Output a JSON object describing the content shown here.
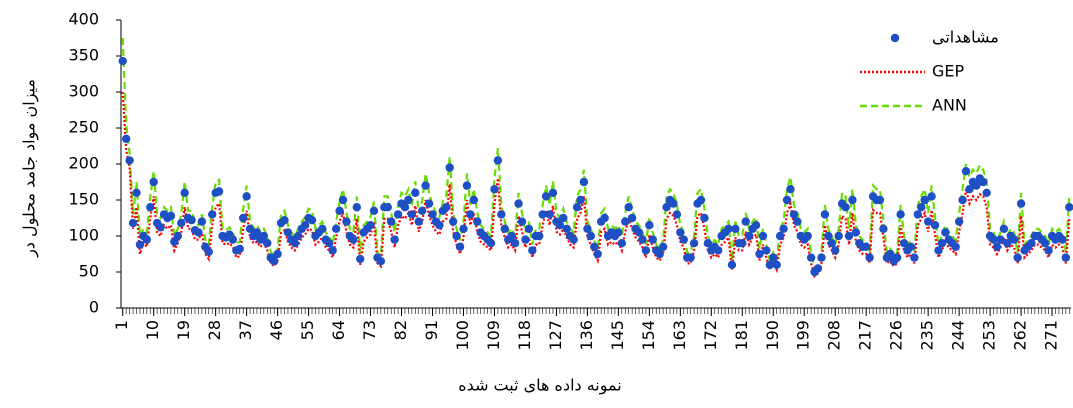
{
  "chart_data": {
    "type": "line",
    "y_label": "میزان مواد جامد محلول در",
    "x_label": "نمونه داده های ثبت شده",
    "legend": "upper right",
    "xlim": [
      0.5,
      276.5
    ],
    "xticks": [
      1,
      10,
      19,
      28,
      37,
      46,
      55,
      64,
      73,
      82,
      91,
      100,
      109,
      118,
      127,
      136,
      145,
      154,
      163,
      172,
      181,
      190,
      199,
      208,
      217,
      226,
      235,
      244,
      253,
      262,
      271
    ],
    "ylim": [
      0,
      400
    ],
    "yticks": [
      0,
      50,
      100,
      150,
      200,
      250,
      300,
      350,
      400
    ],
    "x": [
      1,
      2,
      3,
      4,
      5,
      6,
      7,
      8,
      9,
      10,
      11,
      12,
      13,
      14,
      15,
      16,
      17,
      18,
      19,
      20,
      21,
      22,
      23,
      24,
      25,
      26,
      27,
      28,
      29,
      30,
      31,
      32,
      33,
      34,
      35,
      36,
      37,
      38,
      39,
      40,
      41,
      42,
      43,
      44,
      45,
      46,
      47,
      48,
      49,
      50,
      51,
      52,
      53,
      54,
      55,
      56,
      57,
      58,
      59,
      60,
      61,
      62,
      63,
      64,
      65,
      66,
      67,
      68,
      69,
      70,
      71,
      72,
      73,
      74,
      75,
      76,
      77,
      78,
      79,
      80,
      81,
      82,
      83,
      84,
      85,
      86,
      87,
      88,
      89,
      90,
      91,
      92,
      93,
      94,
      95,
      96,
      97,
      98,
      99,
      100,
      101,
      102,
      103,
      104,
      105,
      106,
      107,
      108,
      109,
      110,
      111,
      112,
      113,
      114,
      115,
      116,
      117,
      118,
      119,
      120,
      121,
      122,
      123,
      124,
      125,
      126,
      127,
      128,
      129,
      130,
      131,
      132,
      133,
      134,
      135,
      136,
      137,
      138,
      139,
      140,
      141,
      142,
      143,
      144,
      145,
      146,
      147,
      148,
      149,
      150,
      151,
      152,
      153,
      154,
      155,
      156,
      157,
      158,
      159,
      160,
      161,
      162,
      163,
      164,
      165,
      166,
      167,
      168,
      169,
      170,
      171,
      172,
      173,
      174,
      175,
      176,
      177,
      178,
      179,
      180,
      181,
      182,
      183,
      184,
      185,
      186,
      187,
      188,
      189,
      190,
      191,
      192,
      193,
      194,
      195,
      196,
      197,
      198,
      199,
      200,
      201,
      202,
      203,
      204,
      205,
      206,
      207,
      208,
      209,
      210,
      211,
      212,
      213,
      214,
      215,
      216,
      217,
      218,
      219,
      220,
      221,
      222,
      223,
      224,
      225,
      226,
      227,
      228,
      229,
      230,
      231,
      232,
      233,
      234,
      235,
      236,
      237,
      238,
      239,
      240,
      241,
      242,
      243,
      244,
      245,
      246,
      247,
      248,
      249,
      250,
      251,
      252,
      253,
      254,
      255,
      256,
      257,
      258,
      259,
      260,
      261,
      262,
      263,
      264,
      265,
      266,
      267,
      268,
      269,
      270,
      271,
      272,
      273,
      274,
      275,
      276
    ],
    "series": [
      {
        "name": "ANN",
        "color": "#66dd00",
        "style": "dashed",
        "values": [
          375,
          255,
          215,
          130,
          175,
          100,
          110,
          105,
          155,
          190,
          130,
          125,
          140,
          135,
          140,
          100,
          110,
          130,
          175,
          135,
          135,
          120,
          115,
          130,
          95,
          88,
          140,
          175,
          178,
          110,
          108,
          112,
          105,
          90,
          92,
          138,
          170,
          120,
          110,
          115,
          105,
          110,
          100,
          78,
          72,
          82,
          130,
          135,
          115,
          105,
          100,
          110,
          120,
          126,
          138,
          135,
          110,
          115,
          120,
          105,
          100,
          88,
          120,
          148,
          165,
          132,
          110,
          105,
          155,
          75,
          115,
          120,
          126,
          148,
          77,
          72,
          155,
          155,
          132,
          105,
          143,
          160,
          155,
          165,
          143,
          176,
          132,
          148,
          187,
          160,
          143,
          132,
          126,
          148,
          155,
          210,
          132,
          110,
          94,
          120,
          187,
          143,
          165,
          132,
          115,
          110,
          105,
          100,
          180,
          222,
          143,
          120,
          105,
          110,
          100,
          160,
          132,
          105,
          120,
          88,
          110,
          110,
          143,
          170,
          143,
          176,
          132,
          126,
          138,
          120,
          110,
          105,
          155,
          165,
          192,
          120,
          110,
          94,
          82,
          132,
          138,
          110,
          115,
          110,
          115,
          100,
          132,
          155,
          138,
          120,
          115,
          105,
          88,
          126,
          105,
          88,
          82,
          94,
          155,
          165,
          160,
          143,
          115,
          105,
          77,
          77,
          100,
          160,
          165,
          138,
          100,
          88,
          94,
          88,
          110,
          115,
          120,
          66,
          120,
          100,
          100,
          132,
          110,
          120,
          126,
          82,
          110,
          88,
          66,
          77,
          66,
          110,
          120,
          165,
          182,
          143,
          132,
          110,
          105,
          110,
          77,
          55,
          60,
          77,
          143,
          110,
          100,
          88,
          110,
          160,
          155,
          110,
          165,
          115,
          100,
          94,
          94,
          77,
          170,
          165,
          165,
          120,
          77,
          82,
          72,
          77,
          143,
          100,
          88,
          94,
          77,
          143,
          155,
          165,
          132,
          170,
          126,
          88,
          100,
          115,
          105,
          100,
          94,
          132,
          165,
          200,
          182,
          192,
          187,
          198,
          192,
          176,
          110,
          105,
          94,
          105,
          120,
          100,
          110,
          105,
          77,
          160,
          88,
          94,
          100,
          110,
          110,
          105,
          100,
          88,
          110,
          105,
          110,
          105,
          77,
          155
        ]
      },
      {
        "name": "GEP",
        "color": "#ff0000",
        "style": "dotted",
        "values": [
          300,
          220,
          195,
          110,
          140,
          75,
          90,
          85,
          125,
          155,
          105,
          100,
          115,
          110,
          115,
          80,
          90,
          105,
          140,
          110,
          110,
          95,
          95,
          105,
          75,
          68,
          115,
          140,
          145,
          90,
          88,
          90,
          85,
          70,
          72,
          110,
          135,
          98,
          90,
          92,
          85,
          90,
          80,
          62,
          58,
          66,
          104,
          108,
          92,
          84,
          80,
          88,
          98,
          102,
          110,
          108,
          88,
          92,
          98,
          84,
          80,
          70,
          98,
          120,
          132,
          106,
          88,
          84,
          124,
          60,
          92,
          98,
          102,
          120,
          62,
          58,
          124,
          124,
          106,
          84,
          115,
          128,
          124,
          132,
          115,
          142,
          106,
          120,
          150,
          128,
          115,
          106,
          102,
          120,
          124,
          172,
          106,
          88,
          75,
          98,
          150,
          115,
          132,
          106,
          92,
          88,
          84,
          80,
          145,
          180,
          115,
          98,
          84,
          88,
          80,
          128,
          106,
          84,
          98,
          70,
          88,
          88,
          115,
          136,
          115,
          142,
          106,
          102,
          110,
          98,
          88,
          84,
          124,
          132,
          155,
          98,
          88,
          75,
          66,
          106,
          110,
          88,
          92,
          88,
          92,
          80,
          106,
          124,
          110,
          98,
          92,
          84,
          70,
          102,
          84,
          70,
          66,
          75,
          124,
          132,
          128,
          115,
          92,
          84,
          62,
          62,
          80,
          128,
          132,
          110,
          80,
          70,
          75,
          70,
          88,
          92,
          98,
          53,
          98,
          80,
          80,
          106,
          88,
          98,
          102,
          66,
          88,
          70,
          53,
          62,
          53,
          88,
          98,
          132,
          145,
          115,
          106,
          88,
          84,
          88,
          62,
          44,
          48,
          62,
          115,
          88,
          80,
          70,
          88,
          128,
          124,
          88,
          132,
          92,
          80,
          75,
          75,
          62,
          136,
          132,
          132,
          98,
          62,
          66,
          58,
          62,
          115,
          80,
          70,
          75,
          62,
          115,
          124,
          132,
          106,
          136,
          102,
          70,
          80,
          92,
          84,
          80,
          75,
          106,
          132,
          165,
          145,
          155,
          150,
          158,
          155,
          140,
          88,
          84,
          75,
          84,
          98,
          80,
          88,
          84,
          62,
          128,
          70,
          75,
          80,
          88,
          88,
          84,
          80,
          70,
          88,
          84,
          88,
          84,
          62,
          124
        ]
      },
      {
        "name": "مشاهداتی",
        "color": "#1f4fc4",
        "style": "dots",
        "values": [
          343,
          235,
          205,
          118,
          160,
          88,
          100,
          95,
          140,
          175,
          118,
          112,
          130,
          125,
          128,
          92,
          100,
          118,
          160,
          125,
          122,
          108,
          105,
          120,
          85,
          78,
          130,
          160,
          162,
          100,
          98,
          102,
          95,
          80,
          82,
          125,
          155,
          110,
          100,
          105,
          95,
          100,
          90,
          70,
          65,
          75,
          118,
          122,
          105,
          95,
          90,
          100,
          110,
          115,
          125,
          122,
          100,
          105,
          110,
          95,
          90,
          80,
          110,
          135,
          150,
          120,
          100,
          95,
          140,
          68,
          105,
          110,
          115,
          135,
          70,
          65,
          140,
          140,
          120,
          95,
          130,
          145,
          140,
          150,
          130,
          160,
          120,
          135,
          170,
          145,
          130,
          120,
          115,
          135,
          140,
          195,
          120,
          100,
          85,
          110,
          170,
          130,
          150,
          120,
          105,
          100,
          95,
          90,
          165,
          205,
          130,
          110,
          95,
          100,
          90,
          145,
          120,
          95,
          110,
          80,
          100,
          100,
          130,
          155,
          130,
          160,
          120,
          115,
          125,
          110,
          100,
          95,
          140,
          150,
          175,
          110,
          100,
          85,
          75,
          120,
          125,
          100,
          105,
          100,
          105,
          90,
          120,
          140,
          125,
          110,
          105,
          95,
          80,
          115,
          95,
          80,
          75,
          85,
          140,
          150,
          145,
          130,
          105,
          95,
          70,
          70,
          90,
          145,
          150,
          125,
          90,
          80,
          85,
          80,
          100,
          105,
          110,
          60,
          110,
          90,
          90,
          120,
          100,
          110,
          115,
          75,
          100,
          80,
          60,
          70,
          60,
          100,
          110,
          150,
          165,
          130,
          120,
          100,
          95,
          100,
          70,
          50,
          55,
          70,
          130,
          100,
          90,
          80,
          100,
          145,
          140,
          100,
          150,
          105,
          90,
          85,
          85,
          70,
          155,
          150,
          150,
          110,
          70,
          75,
          65,
          70,
          130,
          90,
          80,
          85,
          70,
          130,
          140,
          150,
          120,
          155,
          115,
          80,
          90,
          105,
          95,
          90,
          85,
          120,
          150,
          190,
          165,
          175,
          170,
          180,
          175,
          160,
          100,
          95,
          85,
          95,
          110,
          90,
          100,
          95,
          70,
          145,
          80,
          85,
          90,
          100,
          100,
          95,
          90,
          80,
          100,
          95,
          100,
          95,
          70,
          140
        ]
      }
    ]
  }
}
